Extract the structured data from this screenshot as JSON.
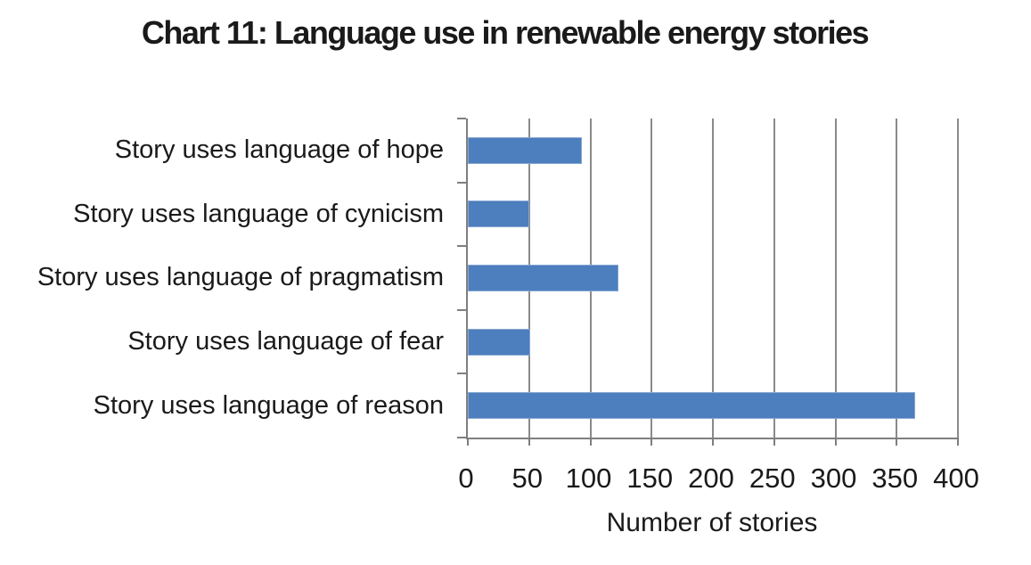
{
  "title": "Chart 11: Language use in renewable energy stories",
  "chart_data": {
    "type": "bar",
    "orientation": "horizontal",
    "title": "Chart 11: Language use in renewable energy stories",
    "categories": [
      "Story uses language of hope",
      "Story uses language of cynicism",
      "Story uses language of pragmatism",
      "Story uses language of fear",
      "Story uses language of reason"
    ],
    "values": [
      93,
      50,
      123,
      51,
      365
    ],
    "xlabel": "Number of stories",
    "ylabel": "",
    "xlim": [
      0,
      400
    ],
    "xticks": [
      0,
      50,
      100,
      150,
      200,
      250,
      300,
      350,
      400
    ],
    "grid": true,
    "legend": false,
    "bar_color": "#4d7ebd",
    "bar_border_color": "#86a7d3",
    "grid_color": "#8a8a8a",
    "axis_color": "#7f7f7f",
    "text_color": "#1a1a1a"
  }
}
